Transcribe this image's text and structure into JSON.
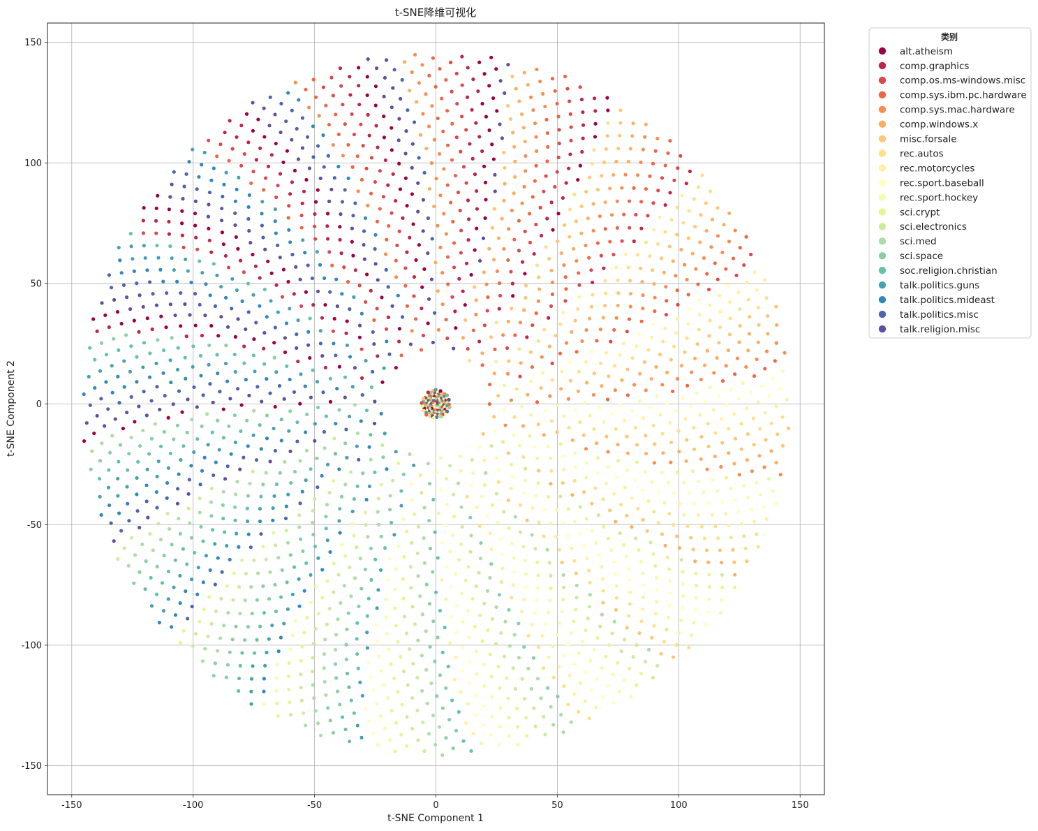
{
  "chart_data": {
    "type": "scatter",
    "title": "t-SNE降维可视化",
    "xlabel": "t-SNE Component 1",
    "ylabel": "t-SNE Component 2",
    "xlim": [
      -160,
      160
    ],
    "ylim": [
      -162,
      158
    ],
    "xticks": [
      -150,
      -100,
      -50,
      0,
      50,
      100,
      150
    ],
    "yticks": [
      -150,
      -100,
      -50,
      0,
      50,
      100,
      150
    ],
    "xtick_labels": [
      "-150",
      "-100",
      "-50",
      "0",
      "50",
      "100",
      "150"
    ],
    "ytick_labels": [
      "-150",
      "-100",
      "-50",
      "0",
      "50",
      "100",
      "150"
    ],
    "grid": true,
    "legend": {
      "title": "类别",
      "placement": "outside-top-right",
      "entries": [
        {
          "name": "alt.atheism",
          "color": "#9e0142"
        },
        {
          "name": "comp.graphics",
          "color": "#be2549"
        },
        {
          "name": "comp.os.ms-windows.misc",
          "color": "#dc494c"
        },
        {
          "name": "comp.sys.ibm.pc.hardware",
          "color": "#ef6645"
        },
        {
          "name": "comp.sys.mac.hardware",
          "color": "#f88d52"
        },
        {
          "name": "comp.windows.x",
          "color": "#fdae61"
        },
        {
          "name": "misc.forsale",
          "color": "#fdc674"
        },
        {
          "name": "rec.autos",
          "color": "#fedf8b"
        },
        {
          "name": "rec.motorcycles",
          "color": "#fff0a6"
        },
        {
          "name": "rec.sport.baseball",
          "color": "#fffebe"
        },
        {
          "name": "rec.sport.hockey",
          "color": "#f5fbb1"
        },
        {
          "name": "sci.crypt",
          "color": "#e6f598"
        },
        {
          "name": "sci.electronics",
          "color": "#cdeb9d"
        },
        {
          "name": "sci.med",
          "color": "#abdda4"
        },
        {
          "name": "sci.space",
          "color": "#87cfa4"
        },
        {
          "name": "soc.religion.christian",
          "color": "#66c2a5"
        },
        {
          "name": "talk.politics.guns",
          "color": "#48a0b2"
        },
        {
          "name": "talk.politics.mideast",
          "color": "#3288bd"
        },
        {
          "name": "talk.politics.misc",
          "color": "#4d65ae"
        },
        {
          "name": "talk.religion.misc",
          "color": "#5e4fa2"
        }
      ]
    },
    "point_distribution": {
      "outer_ring_point_count": 2400,
      "outer_ring_radius_range": [
        22,
        146
      ],
      "center_cluster_point_count": 110,
      "center_cluster_radius": 6
    }
  }
}
